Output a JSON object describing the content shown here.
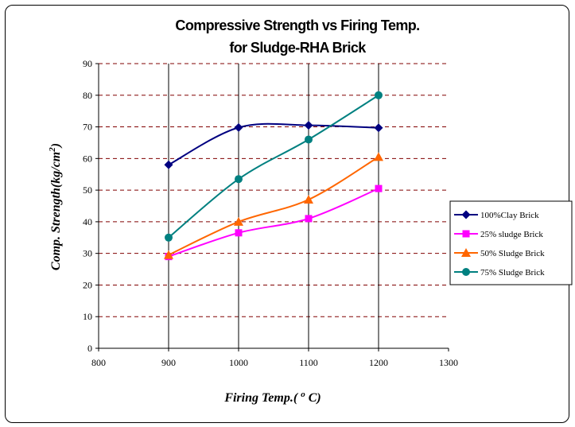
{
  "chart_data": {
    "type": "line",
    "title_lines": [
      "Compressive Strength vs Firing Temp.",
      "for Sludge-RHA Brick"
    ],
    "xlabel": "Firing Temp.( ",
    "xlabel_sup": "o",
    "xlabel_tail": " C)",
    "ylabel": "Comp. Strength(kg/cm",
    "ylabel_sup": "2",
    "ylabel_tail": ")",
    "xlim": [
      800,
      1300
    ],
    "ylim": [
      0,
      90
    ],
    "xticks": [
      800,
      900,
      1000,
      1100,
      1200,
      1300
    ],
    "yticks": [
      0,
      10,
      20,
      30,
      40,
      50,
      60,
      70,
      80,
      90
    ],
    "grid": {
      "horizontal": "dashed",
      "horizontal_color": "#800000",
      "vertical": "solid"
    },
    "legend_position": "right",
    "x": [
      900,
      1000,
      1100,
      1200
    ],
    "series": [
      {
        "name": "100%Clay Brick",
        "values": [
          58,
          69.8,
          70.5,
          69.7
        ],
        "color": "#000080",
        "marker": "diamond"
      },
      {
        "name": "25% sludge Brick",
        "values": [
          29,
          36.5,
          41,
          50.5
        ],
        "color": "#ff00ff",
        "marker": "square"
      },
      {
        "name": "50% Sludge Brick",
        "values": [
          29.5,
          40,
          47,
          60.5
        ],
        "color": "#ff6600",
        "marker": "triangle"
      },
      {
        "name": "75% Sludge Brick",
        "values": [
          35,
          53.5,
          66,
          80
        ],
        "color": "#008080",
        "marker": "circle"
      }
    ]
  }
}
